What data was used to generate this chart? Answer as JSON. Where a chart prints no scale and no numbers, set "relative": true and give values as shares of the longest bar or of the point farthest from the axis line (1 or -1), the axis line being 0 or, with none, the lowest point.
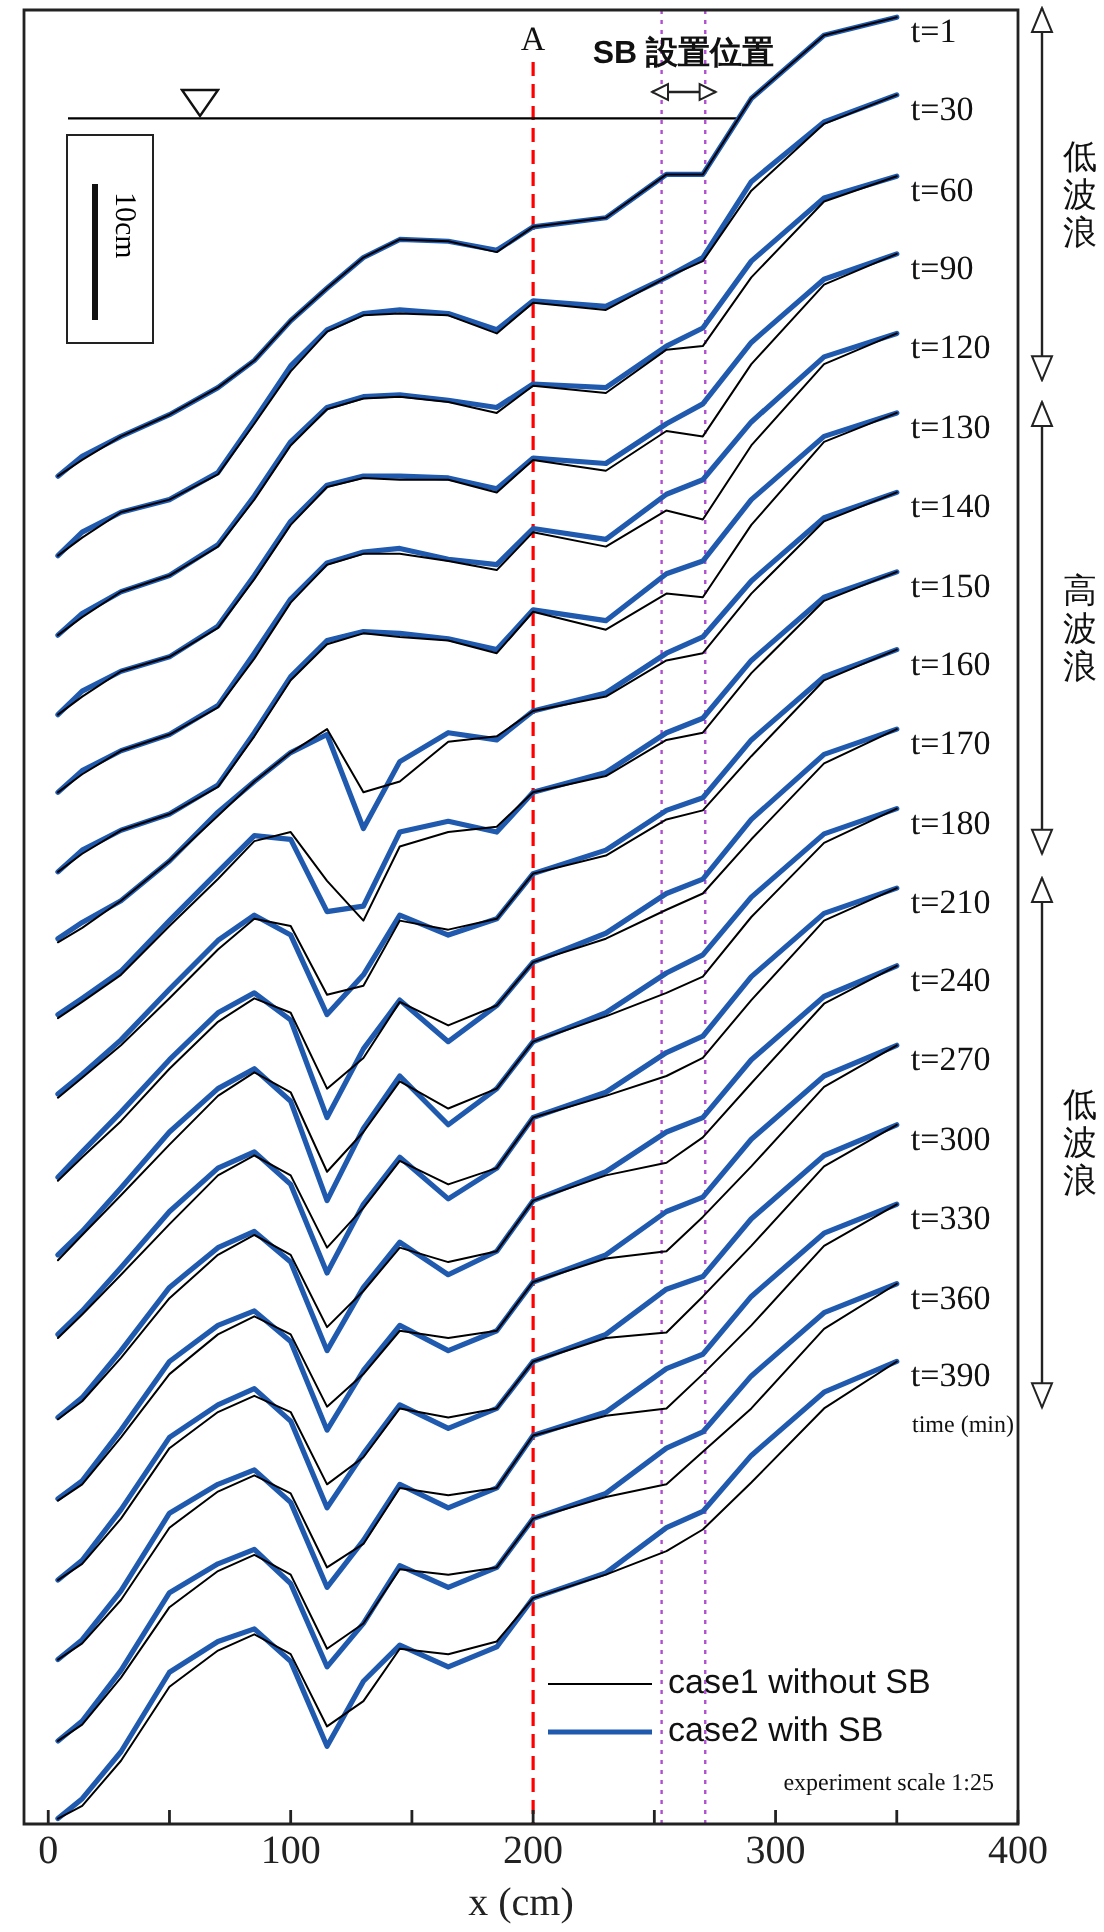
{
  "chart_data": {
    "type": "line",
    "relative": true,
    "xlabel": "x (cm)",
    "xlim": [
      -10,
      400
    ],
    "xticks": [
      0,
      {
        "value": 50,
        "label": null
      },
      100,
      {
        "value": 150,
        "label": null
      },
      200,
      {
        "value": 250,
        "label": null
      },
      300,
      {
        "value": 350,
        "label": null
      },
      400
    ],
    "x": [
      4,
      14,
      30,
      50,
      70,
      85,
      100,
      115,
      130,
      145,
      165,
      185,
      200,
      230,
      255,
      270,
      290,
      320,
      350
    ],
    "marker": "none",
    "legend": "bottom right",
    "series": [
      {
        "name": "case1 without SB",
        "color": "#000000",
        "values": [
          0.746,
          0.755,
          0.768,
          0.78,
          0.795,
          0.81,
          0.832,
          0.85,
          0.867,
          0.877,
          0.876,
          0.87,
          0.884,
          0.889,
          0.913,
          0.913,
          0.955,
          0.99,
          1.0
        ]
      },
      {
        "name": "case2 with SB",
        "color": "#1f5aaf",
        "values": [
          0.746,
          0.757,
          0.768,
          0.78,
          0.795,
          0.81,
          0.832,
          0.85,
          0.867,
          0.877,
          0.876,
          0.871,
          0.884,
          0.889,
          0.913,
          0.913,
          0.955,
          0.99,
          1.0
        ]
      },
      {
        "color": "#000000",
        "values": [
          0.702,
          0.712,
          0.726,
          0.733,
          0.747,
          0.775,
          0.804,
          0.826,
          0.835,
          0.836,
          0.835,
          0.825,
          0.842,
          0.838,
          0.856,
          0.865,
          0.904,
          0.941,
          0.957
        ]
      },
      {
        "color": "#1f5aaf",
        "values": [
          0.702,
          0.715,
          0.726,
          0.733,
          0.748,
          0.777,
          0.807,
          0.827,
          0.836,
          0.838,
          0.836,
          0.827,
          0.843,
          0.84,
          0.856,
          0.867,
          0.909,
          0.942,
          0.957
        ]
      },
      {
        "color": "#000000",
        "values": [
          0.658,
          0.668,
          0.682,
          0.691,
          0.707,
          0.733,
          0.763,
          0.783,
          0.789,
          0.79,
          0.787,
          0.781,
          0.796,
          0.792,
          0.816,
          0.818,
          0.856,
          0.898,
          0.912
        ]
      },
      {
        "color": "#1f5aaf",
        "values": [
          0.658,
          0.67,
          0.682,
          0.691,
          0.708,
          0.735,
          0.765,
          0.784,
          0.79,
          0.791,
          0.788,
          0.784,
          0.797,
          0.795,
          0.818,
          0.828,
          0.865,
          0.9,
          0.912
        ]
      },
      {
        "color": "#000000",
        "values": [
          0.614,
          0.624,
          0.638,
          0.646,
          0.662,
          0.689,
          0.719,
          0.74,
          0.745,
          0.744,
          0.744,
          0.737,
          0.755,
          0.749,
          0.771,
          0.768,
          0.808,
          0.852,
          0.869
        ]
      },
      {
        "color": "#1f5aaf",
        "values": [
          0.614,
          0.627,
          0.638,
          0.646,
          0.663,
          0.691,
          0.721,
          0.741,
          0.746,
          0.746,
          0.745,
          0.739,
          0.756,
          0.753,
          0.775,
          0.786,
          0.82,
          0.855,
          0.869
        ]
      },
      {
        "color": "#000000",
        "values": [
          0.571,
          0.581,
          0.594,
          0.603,
          0.618,
          0.645,
          0.676,
          0.697,
          0.703,
          0.703,
          0.699,
          0.694,
          0.715,
          0.707,
          0.727,
          0.722,
          0.763,
          0.808,
          0.825
        ]
      },
      {
        "color": "#1f5aaf",
        "values": [
          0.571,
          0.583,
          0.594,
          0.603,
          0.619,
          0.648,
          0.678,
          0.698,
          0.704,
          0.706,
          0.7,
          0.697,
          0.717,
          0.711,
          0.736,
          0.744,
          0.776,
          0.812,
          0.825
        ]
      },
      {
        "color": "#000000",
        "values": [
          0.527,
          0.537,
          0.55,
          0.559,
          0.574,
          0.602,
          0.633,
          0.653,
          0.659,
          0.657,
          0.655,
          0.648,
          0.671,
          0.661,
          0.681,
          0.679,
          0.719,
          0.765,
          0.781
        ]
      },
      {
        "color": "#1f5aaf",
        "values": [
          0.527,
          0.539,
          0.55,
          0.559,
          0.575,
          0.604,
          0.635,
          0.655,
          0.66,
          0.659,
          0.656,
          0.65,
          0.672,
          0.666,
          0.692,
          0.699,
          0.733,
          0.768,
          0.781
        ]
      },
      {
        "color": "#000000",
        "values": [
          0.488,
          0.496,
          0.511,
          0.533,
          0.558,
          0.577,
          0.593,
          0.606,
          0.571,
          0.577,
          0.599,
          0.602,
          0.616,
          0.624,
          0.644,
          0.648,
          0.681,
          0.721,
          0.737
        ]
      },
      {
        "color": "#1f5aaf",
        "values": [
          0.49,
          0.499,
          0.511,
          0.533,
          0.56,
          0.577,
          0.593,
          0.603,
          0.551,
          0.588,
          0.604,
          0.6,
          0.616,
          0.626,
          0.648,
          0.657,
          0.688,
          0.723,
          0.737
        ]
      },
      {
        "color": "#000000",
        "values": [
          0.446,
          0.455,
          0.47,
          0.497,
          0.523,
          0.544,
          0.549,
          0.522,
          0.5,
          0.541,
          0.549,
          0.552,
          0.571,
          0.58,
          0.6,
          0.604,
          0.637,
          0.677,
          0.693
        ]
      },
      {
        "color": "#1f5aaf",
        "values": [
          0.448,
          0.457,
          0.472,
          0.5,
          0.527,
          0.547,
          0.545,
          0.505,
          0.508,
          0.549,
          0.555,
          0.549,
          0.571,
          0.582,
          0.604,
          0.612,
          0.644,
          0.679,
          0.693
        ]
      },
      {
        "color": "#000000",
        "values": [
          0.402,
          0.413,
          0.431,
          0.457,
          0.484,
          0.501,
          0.497,
          0.459,
          0.464,
          0.5,
          0.495,
          0.501,
          0.526,
          0.536,
          0.556,
          0.561,
          0.591,
          0.633,
          0.65
        ]
      },
      {
        "color": "#1f5aaf",
        "values": [
          0.404,
          0.415,
          0.434,
          0.462,
          0.489,
          0.503,
          0.492,
          0.448,
          0.47,
          0.503,
          0.492,
          0.501,
          0.526,
          0.539,
          0.561,
          0.568,
          0.6,
          0.635,
          0.65
        ]
      },
      {
        "color": "#000000",
        "values": [
          0.356,
          0.369,
          0.389,
          0.418,
          0.444,
          0.457,
          0.449,
          0.407,
          0.424,
          0.455,
          0.442,
          0.453,
          0.477,
          0.49,
          0.506,
          0.515,
          0.545,
          0.587,
          0.606
        ]
      },
      {
        "color": "#1f5aaf",
        "values": [
          0.358,
          0.372,
          0.394,
          0.423,
          0.449,
          0.46,
          0.445,
          0.391,
          0.429,
          0.456,
          0.433,
          0.453,
          0.477,
          0.493,
          0.515,
          0.523,
          0.556,
          0.592,
          0.606
        ]
      },
      {
        "color": "#000000",
        "values": [
          0.312,
          0.326,
          0.348,
          0.376,
          0.403,
          0.416,
          0.405,
          0.361,
          0.383,
          0.411,
          0.396,
          0.407,
          0.433,
          0.447,
          0.46,
          0.469,
          0.502,
          0.543,
          0.562
        ]
      },
      {
        "color": "#1f5aaf",
        "values": [
          0.315,
          0.328,
          0.352,
          0.383,
          0.407,
          0.418,
          0.4,
          0.345,
          0.385,
          0.414,
          0.387,
          0.407,
          0.433,
          0.449,
          0.471,
          0.481,
          0.513,
          0.548,
          0.562
        ]
      },
      {
        "color": "#000000",
        "values": [
          0.269,
          0.282,
          0.304,
          0.332,
          0.359,
          0.37,
          0.359,
          0.319,
          0.341,
          0.367,
          0.354,
          0.363,
          0.391,
          0.403,
          0.414,
          0.424,
          0.456,
          0.5,
          0.518
        ]
      },
      {
        "color": "#1f5aaf",
        "values": [
          0.271,
          0.284,
          0.308,
          0.339,
          0.363,
          0.372,
          0.354,
          0.305,
          0.343,
          0.369,
          0.346,
          0.363,
          0.391,
          0.405,
          0.427,
          0.436,
          0.469,
          0.504,
          0.518
        ]
      },
      {
        "color": "#000000",
        "values": [
          0.224,
          0.234,
          0.258,
          0.291,
          0.315,
          0.326,
          0.315,
          0.275,
          0.295,
          0.319,
          0.311,
          0.317,
          0.345,
          0.359,
          0.366,
          0.38,
          0.41,
          0.454,
          0.475
        ]
      },
      {
        "color": "#1f5aaf",
        "values": [
          0.225,
          0.236,
          0.262,
          0.297,
          0.319,
          0.328,
          0.311,
          0.262,
          0.297,
          0.322,
          0.304,
          0.317,
          0.345,
          0.361,
          0.383,
          0.391,
          0.423,
          0.458,
          0.475
        ]
      },
      {
        "color": "#000000",
        "values": [
          0.179,
          0.188,
          0.214,
          0.249,
          0.271,
          0.281,
          0.271,
          0.231,
          0.249,
          0.273,
          0.269,
          0.273,
          0.3,
          0.313,
          0.317,
          0.336,
          0.364,
          0.408,
          0.431
        ]
      },
      {
        "color": "#1f5aaf",
        "values": [
          0.18,
          0.19,
          0.218,
          0.256,
          0.276,
          0.284,
          0.267,
          0.218,
          0.251,
          0.276,
          0.262,
          0.273,
          0.3,
          0.315,
          0.339,
          0.347,
          0.379,
          0.414,
          0.431
        ]
      },
      {
        "color": "#000000",
        "values": [
          0.135,
          0.144,
          0.169,
          0.208,
          0.228,
          0.237,
          0.228,
          0.188,
          0.203,
          0.23,
          0.225,
          0.23,
          0.256,
          0.269,
          0.272,
          0.292,
          0.32,
          0.364,
          0.387
        ]
      },
      {
        "color": "#1f5aaf",
        "values": [
          0.135,
          0.146,
          0.174,
          0.214,
          0.232,
          0.241,
          0.223,
          0.175,
          0.205,
          0.232,
          0.219,
          0.23,
          0.256,
          0.271,
          0.296,
          0.303,
          0.335,
          0.37,
          0.387
        ]
      },
      {
        "color": "#000000",
        "values": [
          0.091,
          0.1,
          0.124,
          0.164,
          0.184,
          0.193,
          0.183,
          0.142,
          0.155,
          0.186,
          0.182,
          0.186,
          0.215,
          0.226,
          0.23,
          0.249,
          0.276,
          0.32,
          0.343
        ]
      },
      {
        "color": "#1f5aaf",
        "values": [
          0.091,
          0.102,
          0.129,
          0.172,
          0.188,
          0.196,
          0.178,
          0.131,
          0.157,
          0.188,
          0.175,
          0.186,
          0.215,
          0.228,
          0.252,
          0.26,
          0.292,
          0.327,
          0.343
        ]
      },
      {
        "color": "#000000",
        "values": [
          0.046,
          0.055,
          0.081,
          0.12,
          0.14,
          0.149,
          0.138,
          0.097,
          0.111,
          0.141,
          0.138,
          0.142,
          0.169,
          0.181,
          0.188,
          0.206,
          0.23,
          0.274,
          0.299
        ]
      },
      {
        "color": "#1f5aaf",
        "values": [
          0.046,
          0.057,
          0.085,
          0.128,
          0.144,
          0.152,
          0.133,
          0.087,
          0.111,
          0.143,
          0.131,
          0.142,
          0.169,
          0.183,
          0.208,
          0.217,
          0.248,
          0.283,
          0.299
        ]
      },
      {
        "color": "#000000",
        "values": [
          0.003,
          0.01,
          0.035,
          0.076,
          0.096,
          0.105,
          0.094,
          0.054,
          0.068,
          0.097,
          0.094,
          0.101,
          0.125,
          0.138,
          0.151,
          0.163,
          0.189,
          0.23,
          0.256
        ]
      },
      {
        "color": "#1f5aaf",
        "values": [
          0.003,
          0.014,
          0.04,
          0.084,
          0.101,
          0.108,
          0.09,
          0.043,
          0.079,
          0.099,
          0.087,
          0.098,
          0.125,
          0.139,
          0.164,
          0.173,
          0.204,
          0.239,
          0.256
        ]
      }
    ],
    "ref_lines": [
      {
        "axis": "x",
        "value": 200,
        "label": "A",
        "color": "#ff0000",
        "line_style": "dashed"
      },
      {
        "axis": "x",
        "value": 253,
        "color": "#b04fd0",
        "line_style": "dotted"
      },
      {
        "axis": "x",
        "value": 271,
        "color": "#b04fd0",
        "line_style": "dotted"
      },
      {
        "axis": "y",
        "value": 0.944,
        "color": "#000000",
        "line_style": "solid"
      }
    ],
    "annotations": [
      "SB 設置位置",
      "10cm",
      "低波浪",
      "高波浪",
      "低波浪",
      "time (min)",
      "experiment scale 1:25",
      "t=1",
      "t=30",
      "t=60",
      "t=90",
      "t=120",
      "t=130",
      "t=140",
      "t=150",
      "t=160",
      "t=170",
      "t=180",
      "t=210",
      "t=240",
      "t=270",
      "t=300",
      "t=330",
      "t=360",
      "t=390"
    ]
  }
}
